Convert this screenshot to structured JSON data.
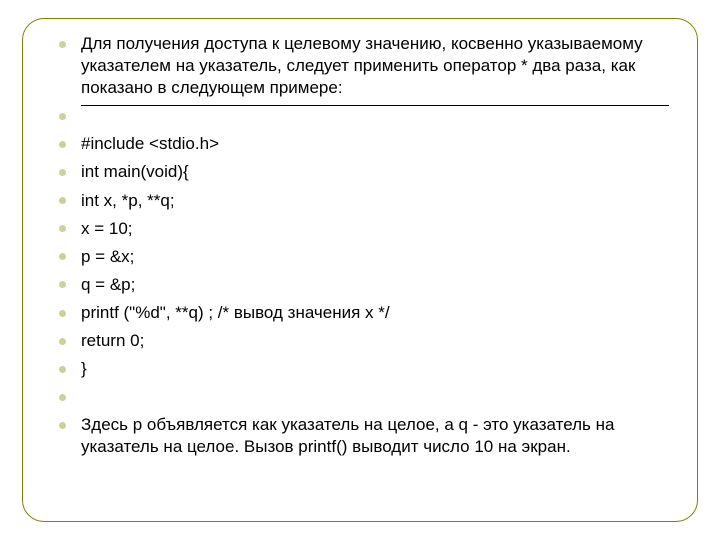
{
  "slide": {
    "bullet_color": "#cfcf9a",
    "border_color": "#808000",
    "text_color": "#000000",
    "font_size_pt": 13,
    "items": [
      {
        "text": "Для получения доступа к целевому значению, косвенно указываемому указателем на указатель, следует применить оператор * два раза, как показано в следующем примере:"
      },
      {
        "text": "",
        "rule": true
      },
      {
        "text": "#include <stdio.h>"
      },
      {
        "text": "int main(void){"
      },
      {
        "text": "int x, *р, **q;"
      },
      {
        "text": "x = 10;"
      },
      {
        "text": "р = &x;"
      },
      {
        "text": "q = &p;"
      },
      {
        "text": "printf (\"%d\", **q) ; /* вывод значения x */"
      },
      {
        "text": "return 0;"
      },
      {
        "text": "}"
      },
      {
        "text": ""
      },
      {
        "text": "Здесь p объявляется как указатель на целое, a q - это указатель на указатель на целое. Вызов printf() выводит число 10 на экран."
      }
    ]
  }
}
